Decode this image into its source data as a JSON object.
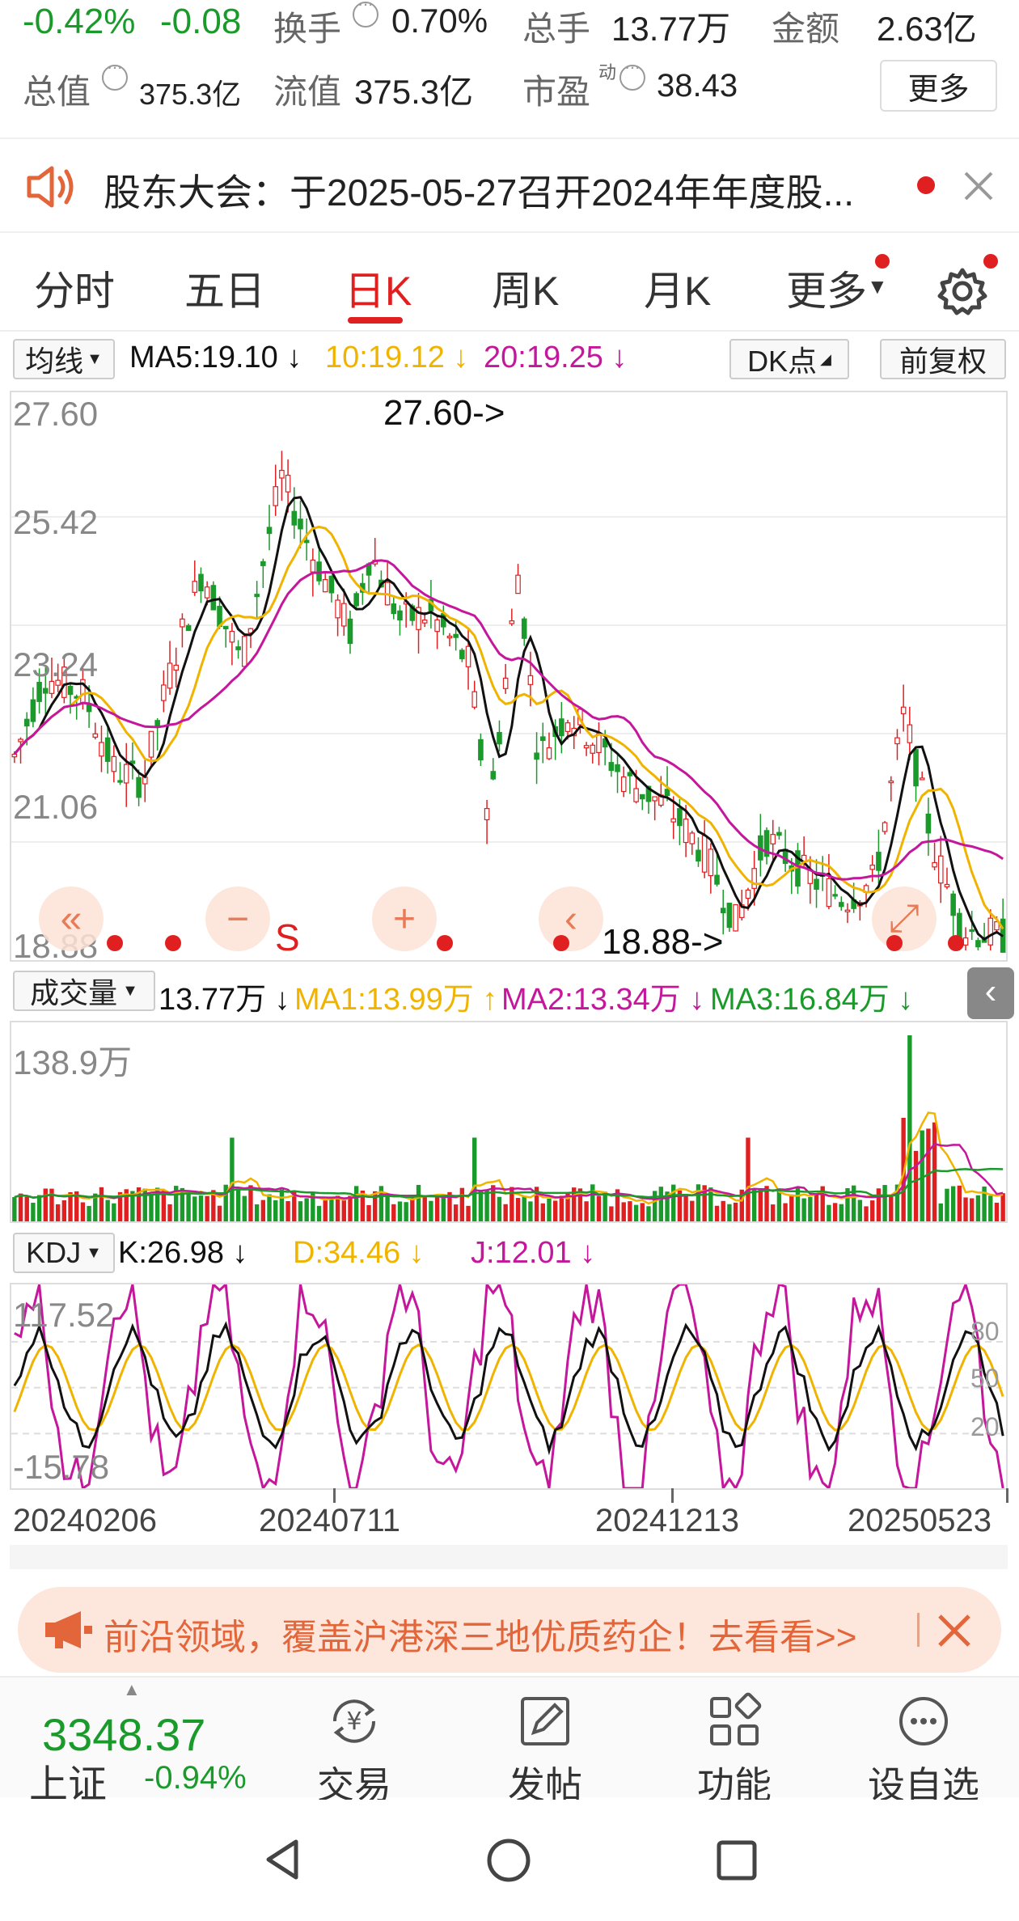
{
  "quote": {
    "change_pct": "-0.42%",
    "change_abs": "-0.08",
    "turnover_label": "换手",
    "turnover_value": "0.70%",
    "volume_label": "总手",
    "volume_value": "13.77万",
    "amount_label": "金额",
    "amount_value": "2.63亿",
    "total_mv_label": "总值",
    "total_mv_value": "375.3亿",
    "float_mv_label": "流值",
    "float_mv_value": "375.3亿",
    "pe_label": "市盈",
    "pe_superscript": "动",
    "pe_value": "38.43",
    "more_label": "更多"
  },
  "notice": {
    "text": "股东大会：于2025-05-27召开2024年年度股...",
    "close_icon": "close-icon"
  },
  "tabs": [
    "分时",
    "五日",
    "日K",
    "周K",
    "月K",
    "更多"
  ],
  "active_tab": 2,
  "ma_bar": {
    "select_label": "均线",
    "ma5": "MA5:19.10 ↓",
    "ma10": "10:19.12 ↓",
    "ma20": "20:19.25 ↓",
    "dk_label": "DK点",
    "adjust_label": "前复权"
  },
  "price_axis": [
    "27.60",
    "25.42",
    "23.24",
    "21.06",
    "18.88"
  ],
  "price_annotations": {
    "high": "27.60->",
    "low": "18.88->"
  },
  "chart_controls": {
    "s_label": "S"
  },
  "volume_bar": {
    "select_label": "成交量",
    "value": "13.77万 ↓",
    "ma1": "MA1:13.99万 ↑",
    "ma2": "MA2:13.34万 ↓",
    "ma3": "MA3:16.84万 ↓",
    "axis_max": "138.9万"
  },
  "kdj_bar": {
    "select_label": "KDJ",
    "k": "K:26.98 ↓",
    "d": "D:34.46 ↓",
    "j": "J:12.01 ↓",
    "axis_max": "117.52",
    "axis_min": "-15.78",
    "level_80": "80",
    "level_50": "50",
    "level_20": "20"
  },
  "dates": [
    "20240206",
    "20240711",
    "20241213",
    "20250523"
  ],
  "ad_banner": {
    "text": "前沿领域，覆盖沪港深三地优质药企！去看看>>"
  },
  "bottom_nav": {
    "index_value": "3348.37",
    "index_name": "上证",
    "index_change": "-0.94%",
    "items": [
      "交易",
      "发帖",
      "功能",
      "设自选"
    ]
  },
  "colors": {
    "up": "#e02020",
    "down": "#1a9a2a",
    "ma5_k": "#111111",
    "ma10_d": "#f0b400",
    "ma20_j": "#c4179c",
    "ma3": "#1a9a2a",
    "accent": "#e3653a"
  }
}
